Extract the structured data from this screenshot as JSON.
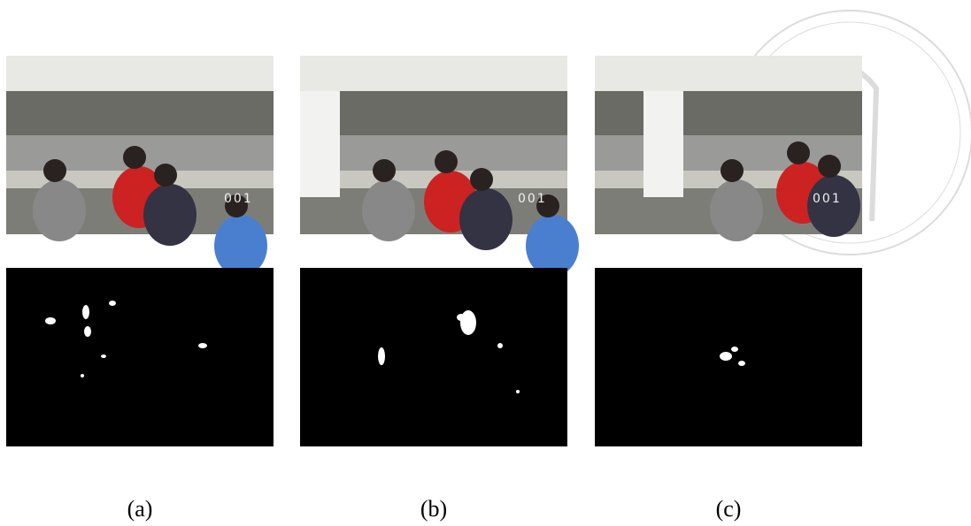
{
  "panels": [
    {
      "label": "(a)",
      "overlay": "001"
    },
    {
      "label": "(b)",
      "overlay": "001"
    },
    {
      "label": "(c)",
      "overlay": "001"
    }
  ]
}
